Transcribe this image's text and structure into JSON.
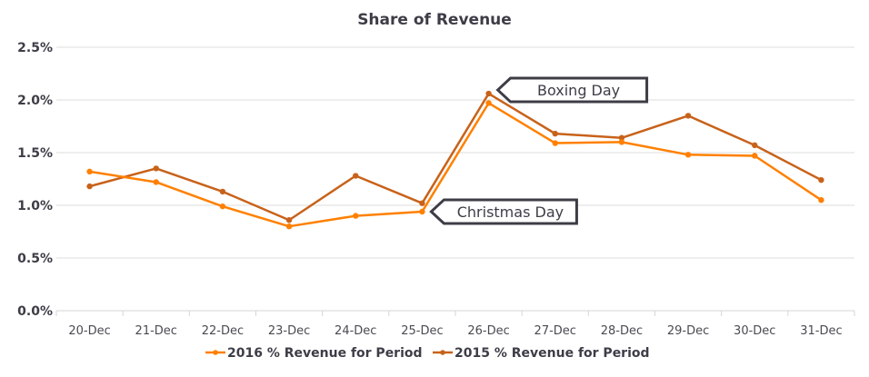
{
  "chart_data": {
    "type": "line",
    "title": "Share of Revenue",
    "xlabel": "",
    "ylabel": "",
    "categories": [
      "20-Dec",
      "21-Dec",
      "22-Dec",
      "23-Dec",
      "24-Dec",
      "25-Dec",
      "26-Dec",
      "27-Dec",
      "28-Dec",
      "29-Dec",
      "30-Dec",
      "31-Dec"
    ],
    "ylim": [
      0,
      2.5
    ],
    "yticks": [
      0.0,
      0.5,
      1.0,
      1.5,
      2.0,
      2.5
    ],
    "ytick_labels": [
      "0.0%",
      "0.5%",
      "1.0%",
      "1.5%",
      "2.0%",
      "2.5%"
    ],
    "grid": true,
    "legend_position": "bottom",
    "series": [
      {
        "name": "2016 % Revenue for Period",
        "color": "#ff8000",
        "values": [
          1.32,
          1.22,
          0.99,
          0.8,
          0.9,
          0.94,
          1.97,
          1.59,
          1.6,
          1.48,
          1.47,
          1.05
        ]
      },
      {
        "name": "2015 % Revenue for Period",
        "color": "#c8621a",
        "values": [
          1.18,
          1.35,
          1.13,
          0.86,
          1.28,
          1.02,
          2.06,
          1.68,
          1.64,
          1.85,
          1.57,
          1.24
        ]
      }
    ],
    "annotations": [
      {
        "text": "Boxing Day",
        "category": "26-Dec",
        "series": 1
      },
      {
        "text": "Christmas Day",
        "category": "25-Dec",
        "series": 0
      }
    ],
    "text_color": "#3d3d47",
    "grid_color": "#dedede"
  }
}
